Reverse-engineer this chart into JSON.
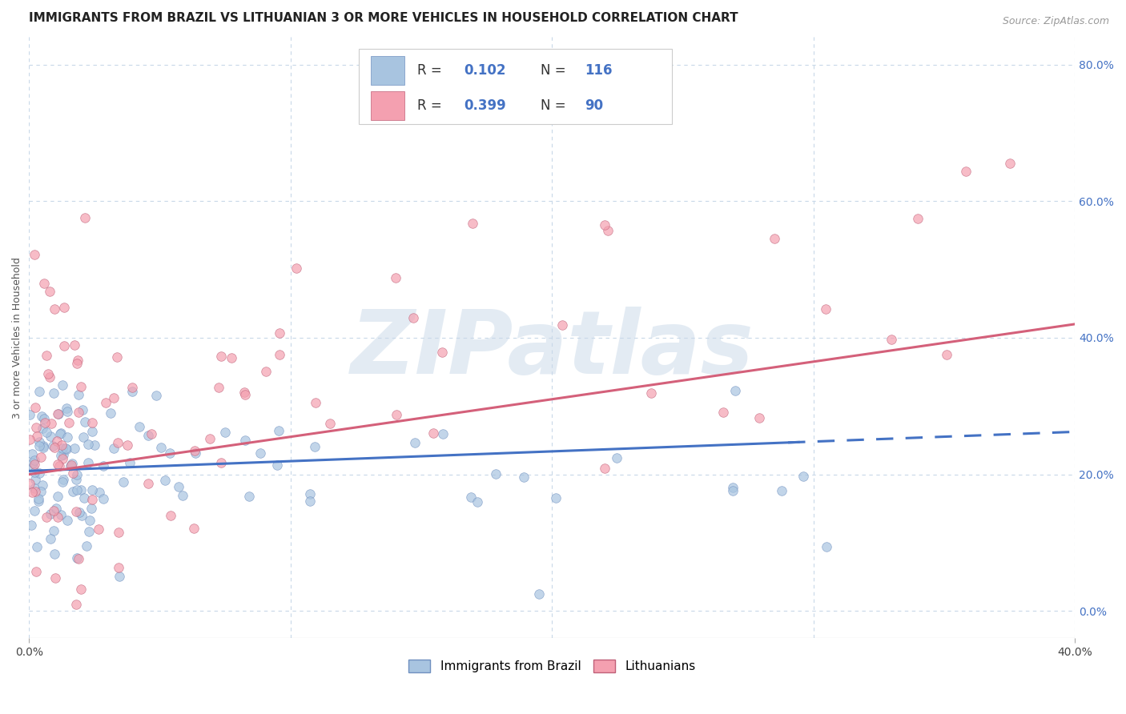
{
  "title": "IMMIGRANTS FROM BRAZIL VS LITHUANIAN 3 OR MORE VEHICLES IN HOUSEHOLD CORRELATION CHART",
  "source": "Source: ZipAtlas.com",
  "ylabel": "3 or more Vehicles in Household",
  "brazil_R": 0.102,
  "brazil_N": 116,
  "lithuania_R": 0.399,
  "lithuania_N": 90,
  "brazil_color": "#a8c4e0",
  "lithuania_color": "#f4a0b0",
  "brazil_line_color": "#4472c4",
  "lithuania_line_color": "#d4607a",
  "brazil_marker_edge": "#7090c0",
  "lithuania_marker_edge": "#c06078",
  "xlim": [
    0.0,
    0.4
  ],
  "ylim": [
    -0.04,
    0.84
  ],
  "yticks": [
    0.0,
    0.2,
    0.4,
    0.6,
    0.8
  ],
  "xticks_positions": [
    0.0,
    0.4
  ],
  "xticks_labels": [
    "0.0%",
    "40.0%"
  ],
  "background_color": "#ffffff",
  "grid_color": "#c8d8e8",
  "watermark": "ZIPatlas",
  "legend_brazil_label": "Immigrants from Brazil",
  "legend_lithuania_label": "Lithuanians",
  "title_fontsize": 11,
  "axis_fontsize": 9,
  "tick_fontsize": 10,
  "source_fontsize": 9,
  "marker_size": 70,
  "brazil_line_solid_end": 0.295,
  "brazil_line_dash_start": 0.29
}
